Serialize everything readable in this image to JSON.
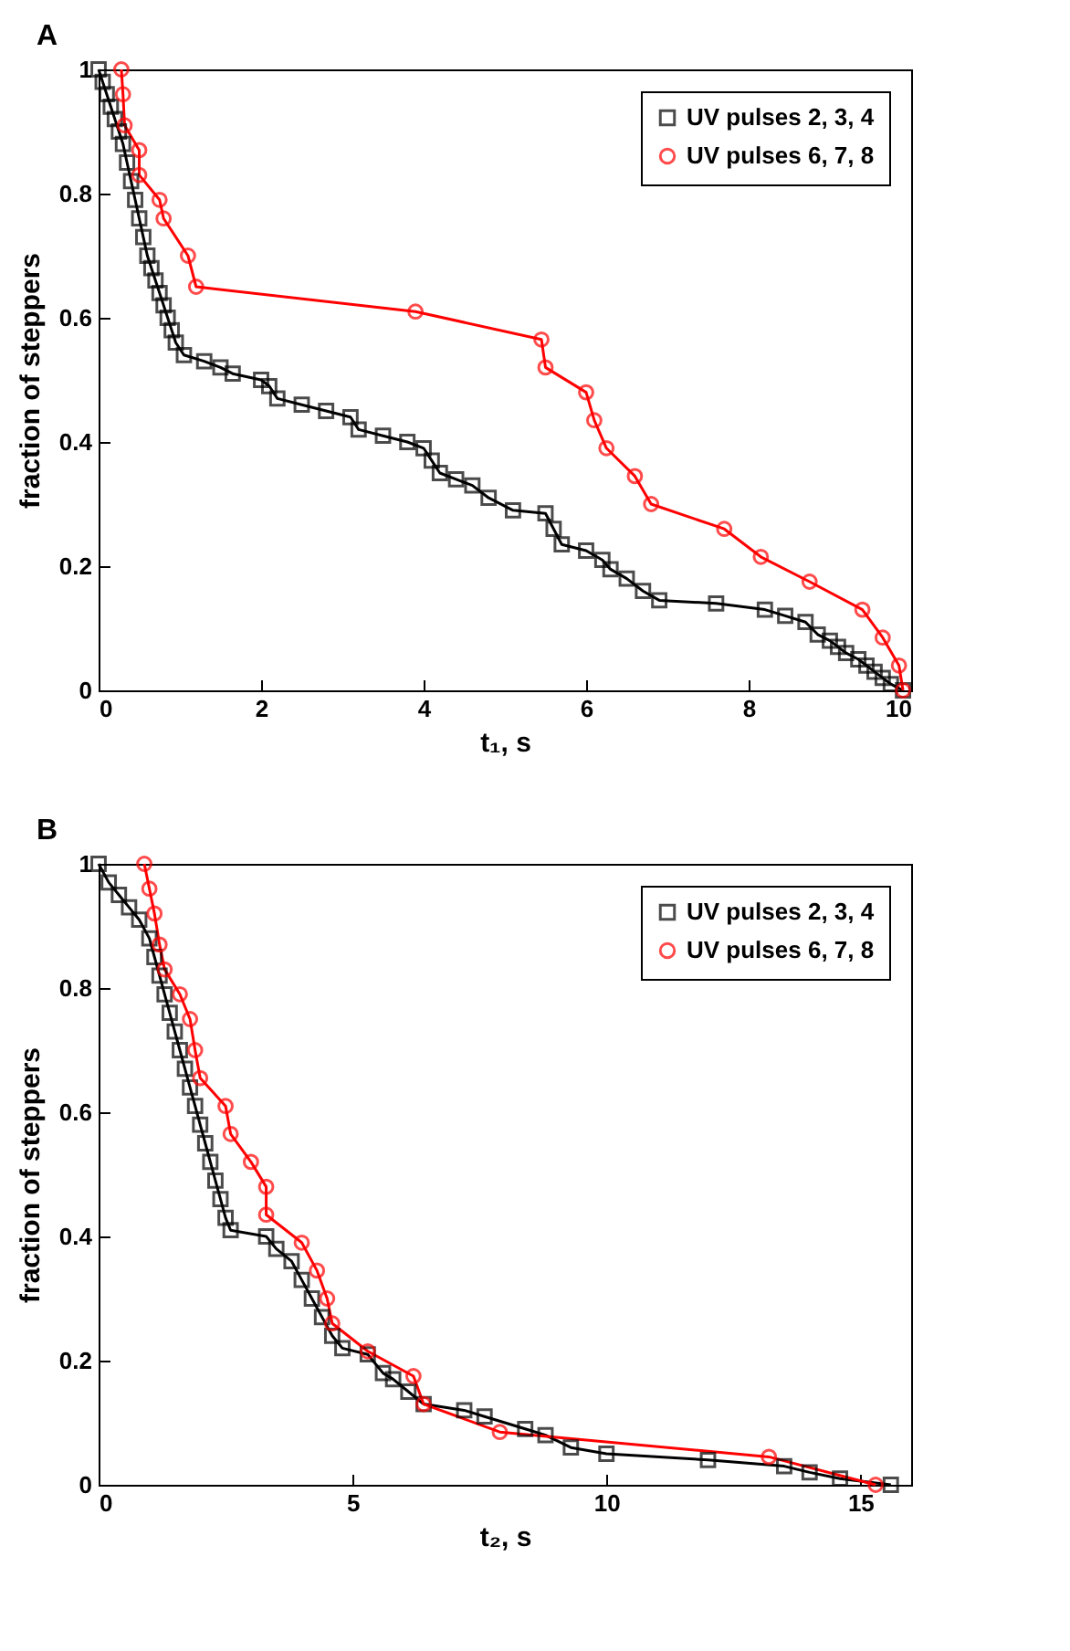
{
  "chart_data": [
    {
      "type": "line",
      "title": "A",
      "xlabel": "t₁, s",
      "ylabel": "fraction of\nsteppers",
      "xlim": [
        0,
        10
      ],
      "xticks": [
        0,
        2,
        4,
        6,
        8,
        10
      ],
      "ylim": [
        0,
        1
      ],
      "yticks": [
        0,
        0.2,
        0.4,
        0.6,
        0.8,
        1
      ],
      "legend": "top right",
      "grid": false,
      "series": [
        {
          "name": "UV pulses 2, 3, 4",
          "color": "#000000",
          "marker": "square",
          "x": [
            0,
            0.05,
            0.1,
            0.15,
            0.2,
            0.25,
            0.3,
            0.35,
            0.4,
            0.45,
            0.5,
            0.55,
            0.6,
            0.65,
            0.7,
            0.75,
            0.8,
            0.85,
            0.9,
            0.95,
            1.05,
            1.3,
            1.5,
            1.65,
            2.0,
            2.1,
            2.2,
            2.5,
            2.8,
            3.1,
            3.2,
            3.5,
            3.8,
            4.0,
            4.1,
            4.2,
            4.4,
            4.6,
            4.8,
            5.1,
            5.5,
            5.6,
            5.7,
            6.0,
            6.2,
            6.3,
            6.5,
            6.7,
            6.9,
            7.6,
            8.2,
            8.45,
            8.7,
            8.85,
            9.0,
            9.1,
            9.2,
            9.35,
            9.45,
            9.55,
            9.65,
            9.75,
            9.9
          ],
          "values": [
            1,
            0.98,
            0.96,
            0.94,
            0.92,
            0.9,
            0.88,
            0.85,
            0.82,
            0.79,
            0.76,
            0.73,
            0.7,
            0.68,
            0.66,
            0.64,
            0.62,
            0.6,
            0.58,
            0.56,
            0.54,
            0.53,
            0.52,
            0.51,
            0.5,
            0.49,
            0.47,
            0.46,
            0.45,
            0.44,
            0.42,
            0.41,
            0.4,
            0.39,
            0.37,
            0.35,
            0.34,
            0.33,
            0.31,
            0.29,
            0.285,
            0.26,
            0.235,
            0.225,
            0.21,
            0.195,
            0.18,
            0.16,
            0.145,
            0.14,
            0.13,
            0.12,
            0.11,
            0.09,
            0.08,
            0.07,
            0.06,
            0.05,
            0.04,
            0.03,
            0.02,
            0.01,
            0
          ]
        },
        {
          "name": "UV pulses 6, 7, 8",
          "color": "#ff0000",
          "marker": "circle",
          "x": [
            0.28,
            0.3,
            0.32,
            0.5,
            0.5,
            0.75,
            0.8,
            1.1,
            1.2,
            3.9,
            5.45,
            5.5,
            6.0,
            6.1,
            6.25,
            6.6,
            6.8,
            7.7,
            8.15,
            8.75,
            9.4,
            9.65,
            9.85,
            9.9
          ],
          "values": [
            1,
            0.96,
            0.91,
            0.87,
            0.83,
            0.79,
            0.76,
            0.7,
            0.65,
            0.61,
            0.565,
            0.52,
            0.48,
            0.435,
            0.39,
            0.345,
            0.3,
            0.26,
            0.215,
            0.175,
            0.13,
            0.085,
            0.04,
            0
          ]
        }
      ]
    },
    {
      "type": "line",
      "title": "B",
      "xlabel": "t₂, s",
      "ylabel": "fraction of\nsteppers",
      "xlim": [
        0,
        16
      ],
      "xticks": [
        0,
        5,
        10,
        15
      ],
      "ylim": [
        0,
        1
      ],
      "yticks": [
        0,
        0.2,
        0.4,
        0.6,
        0.8,
        1
      ],
      "legend": "top right",
      "grid": false,
      "series": [
        {
          "name": "UV pulses 2, 3, 4",
          "color": "#000000",
          "marker": "square",
          "x": [
            0,
            0.2,
            0.4,
            0.6,
            0.8,
            1.0,
            1.1,
            1.2,
            1.3,
            1.4,
            1.5,
            1.6,
            1.7,
            1.8,
            1.9,
            2.0,
            2.1,
            2.2,
            2.3,
            2.4,
            2.5,
            2.6,
            3.3,
            3.5,
            3.8,
            4.0,
            4.2,
            4.4,
            4.6,
            4.8,
            5.3,
            5.6,
            5.8,
            6.1,
            6.4,
            7.2,
            7.6,
            8.4,
            8.8,
            9.3,
            10.0,
            12.0,
            13.5,
            14.0,
            14.6,
            15.6
          ],
          "values": [
            1,
            0.97,
            0.95,
            0.93,
            0.91,
            0.88,
            0.85,
            0.82,
            0.79,
            0.76,
            0.73,
            0.7,
            0.67,
            0.64,
            0.61,
            0.58,
            0.55,
            0.52,
            0.49,
            0.46,
            0.43,
            0.41,
            0.4,
            0.38,
            0.36,
            0.33,
            0.3,
            0.27,
            0.24,
            0.22,
            0.21,
            0.18,
            0.17,
            0.15,
            0.13,
            0.12,
            0.11,
            0.09,
            0.08,
            0.06,
            0.05,
            0.04,
            0.03,
            0.02,
            0.01,
            0
          ]
        },
        {
          "name": "UV pulses 6, 7, 8",
          "color": "#ff0000",
          "marker": "circle",
          "x": [
            0.9,
            1.0,
            1.1,
            1.2,
            1.3,
            1.6,
            1.8,
            1.9,
            2.0,
            2.5,
            2.6,
            3.0,
            3.3,
            3.3,
            4.0,
            4.3,
            4.5,
            4.6,
            5.3,
            6.2,
            6.4,
            7.9,
            13.2,
            15.3
          ],
          "values": [
            1,
            0.96,
            0.92,
            0.87,
            0.83,
            0.79,
            0.75,
            0.7,
            0.655,
            0.61,
            0.565,
            0.52,
            0.48,
            0.435,
            0.39,
            0.345,
            0.3,
            0.26,
            0.215,
            0.175,
            0.13,
            0.085,
            0.045,
            0
          ]
        }
      ]
    }
  ]
}
